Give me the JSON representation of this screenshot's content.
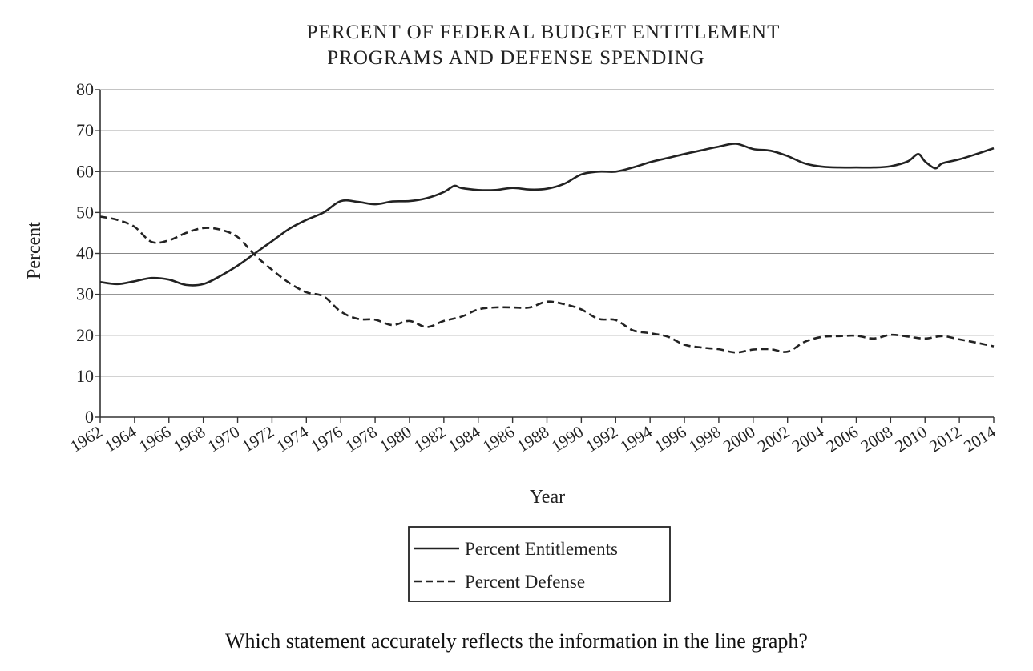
{
  "chart_data": {
    "type": "line",
    "title": "PERCENT OF FEDERAL BUDGET ENTITLEMENT\nPROGRAMS AND DEFENSE SPENDING",
    "title_lines": [
      "PERCENT OF FEDERAL BUDGET ENTITLEMENT",
      "PROGRAMS AND DEFENSE SPENDING"
    ],
    "xlabel": "Year",
    "ylabel": "Percent",
    "ylim": [
      0,
      80
    ],
    "xlim": [
      1962,
      2014
    ],
    "y_ticks": [
      0,
      10,
      20,
      30,
      40,
      50,
      60,
      70,
      80
    ],
    "x_ticks": [
      "1962",
      "1964",
      "1966",
      "1968",
      "1970",
      "1972",
      "1974",
      "1976",
      "1978",
      "1980",
      "1982",
      "1984",
      "1986",
      "1988",
      "1990",
      "1992",
      "1994",
      "1996",
      "1998",
      "2000",
      "2002",
      "2004",
      "2006",
      "2008",
      "2010",
      "2012",
      "2014"
    ],
    "grid": true,
    "legend_position": "bottom-center",
    "series": [
      {
        "name": "Percent Entitlements",
        "style": "solid",
        "x": [
          1962,
          1963,
          1964,
          1965,
          1966,
          1967,
          1968,
          1969,
          1970,
          1971,
          1972,
          1973,
          1974,
          1975,
          1976,
          1977,
          1978,
          1979,
          1980,
          1981,
          1982,
          1982.6,
          1983,
          1984,
          1985,
          1986,
          1987,
          1988,
          1989,
          1990,
          1991,
          1992,
          1993,
          1994,
          1995,
          1996,
          1997,
          1998,
          1999,
          2000,
          2001,
          2002,
          2003,
          2004,
          2005,
          2006,
          2007,
          2008,
          2009,
          2009.6,
          2010,
          2010.6,
          2011,
          2012,
          2013,
          2014
        ],
        "y": [
          33,
          32.5,
          33.2,
          34,
          33.6,
          32.3,
          32.5,
          34.5,
          37,
          40,
          43,
          46,
          48.2,
          50,
          52.8,
          52.6,
          52,
          52.7,
          52.8,
          53.5,
          55,
          56.5,
          56,
          55.5,
          55.5,
          56,
          55.6,
          55.8,
          57,
          59.3,
          60,
          60,
          61,
          62.3,
          63.3,
          64.3,
          65.2,
          66.1,
          66.8,
          65.5,
          65.1,
          63.8,
          62,
          61.2,
          61,
          61,
          61,
          61.3,
          62.5,
          64.3,
          62.5,
          60.8,
          62,
          63,
          64.3,
          65.7
        ]
      },
      {
        "name": "Percent Defense",
        "style": "dashed",
        "x": [
          1962,
          1963,
          1964,
          1965,
          1966,
          1967,
          1968,
          1969,
          1970,
          1971,
          1972,
          1973,
          1974,
          1975,
          1976,
          1977,
          1978,
          1979,
          1980,
          1981,
          1982,
          1983,
          1984,
          1985,
          1986,
          1987,
          1988,
          1989,
          1990,
          1991,
          1992,
          1993,
          1994,
          1995,
          1996,
          1997,
          1998,
          1999,
          2000,
          2001,
          2002,
          2003,
          2004,
          2005,
          2006,
          2007,
          2008,
          2009,
          2010,
          2011,
          2012,
          2013,
          2014
        ],
        "y": [
          49,
          48.2,
          46.5,
          42.8,
          43.2,
          45,
          46.2,
          45.8,
          44,
          39.6,
          36,
          32.8,
          30.5,
          29.5,
          25.8,
          24,
          23.8,
          22.5,
          23.5,
          22,
          23.5,
          24.5,
          26.3,
          26.8,
          26.8,
          26.8,
          28.2,
          27.6,
          26.3,
          24,
          23.7,
          21.2,
          20.5,
          19.7,
          17.7,
          17,
          16.6,
          15.8,
          16.5,
          16.6,
          16,
          18.4,
          19.6,
          19.8,
          19.9,
          19.2,
          20.1,
          19.7,
          19.2,
          19.8,
          19,
          18.2,
          17.3
        ]
      }
    ]
  },
  "legend": {
    "items": [
      {
        "label": "Percent Entitlements",
        "style": "solid"
      },
      {
        "label": "Percent Defense",
        "style": "dashed"
      }
    ]
  },
  "question": "Which statement accurately reflects the information in the line graph?"
}
